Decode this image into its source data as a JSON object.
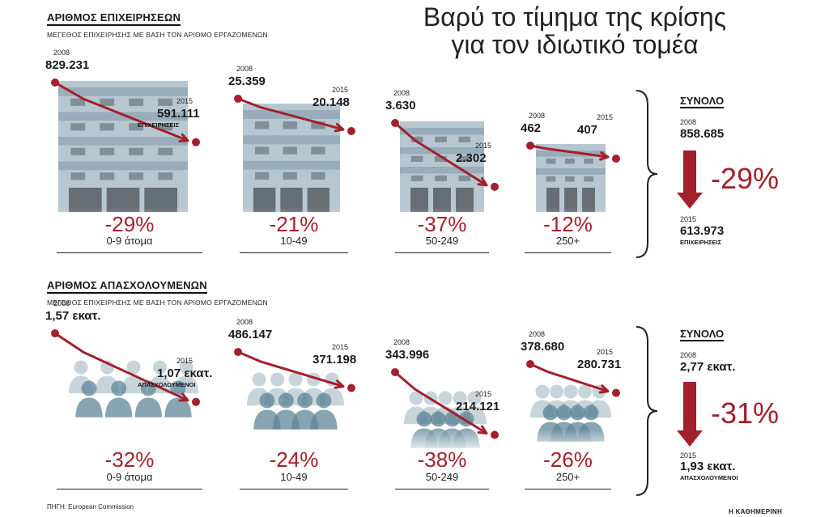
{
  "title_main": "Βαρύ το τίμημα της κρίσης για τον ιδιωτικό τομέα",
  "colors": {
    "accent": "#a3202c",
    "building": "#9fb4c1",
    "people": "#5f8698"
  },
  "source": "ΠΗΓΗ: European Commission",
  "credit": "Η ΚΑΘΗΜΕΡΙΝΗ",
  "chart_data": [
    {
      "type": "line",
      "section_title": "ΑΡΙΘΜΟΣ ΕΠΙΧΕΙΡΗΣΕΩΝ",
      "section_subtitle": "ΜΕΓΕΘΟΣ ΕΠΙΧΕΙΡΗΣΗΣ ΜΕ ΒΑΣΗ ΤΟΝ ΑΡΙΘΜΟ ΕΡΓΑΖΟΜΕΝΩΝ",
      "x": [
        "2008",
        "2015"
      ],
      "panels": [
        {
          "category": "0-9 άτομα",
          "start_year": "2008",
          "end_year": "2015",
          "start_label": "829.231",
          "end_label": "591.111",
          "end_unit": "ΕΠΙΧΕΙΡΗΣΕΙΣ",
          "values": [
            829231,
            591111
          ],
          "change": "-29%"
        },
        {
          "category": "10-49",
          "start_year": "2008",
          "end_year": "2015",
          "start_label": "25.359",
          "end_label": "20.148",
          "end_unit": "",
          "values": [
            25359,
            20148
          ],
          "change": "-21%"
        },
        {
          "category": "50-249",
          "start_year": "2008",
          "end_year": "2015",
          "start_label": "3.630",
          "end_label": "2.302",
          "end_unit": "",
          "values": [
            3630,
            2302
          ],
          "change": "-37%"
        },
        {
          "category": "250+",
          "start_year": "2008",
          "end_year": "2015",
          "start_label": "462",
          "end_label": "407",
          "end_unit": "",
          "values": [
            462,
            407
          ],
          "change": "-12%"
        }
      ],
      "total": {
        "title": "ΣΥΝΟΛΟ",
        "start_year": "2008",
        "start_label": "858.685",
        "end_year": "2015",
        "end_label": "613.973",
        "end_unit": "ΕΠΙΧΕΙΡΗΣΕΙΣ",
        "values": [
          858685,
          613973
        ],
        "change": "-29%"
      }
    },
    {
      "type": "line",
      "section_title": "ΑΡΙΘΜΟΣ ΑΠΑΣΧΟΛΟΥΜΕΝΩΝ",
      "section_subtitle": "ΜΕΓΕΘΟΣ ΕΠΙΧΕΙΡΗΣΗΣ ΜΕ ΒΑΣΗ ΤΟΝ ΑΡΙΘΜΟ ΕΡΓΑΖΟΜΕΝΩΝ",
      "x": [
        "2008",
        "2015"
      ],
      "panels": [
        {
          "category": "0-9 άτομα",
          "start_year": "2008",
          "end_year": "2015",
          "start_label": "1,57 εκατ.",
          "end_label": "1,07 εκατ.",
          "end_unit": "ΑΠΑΣΧΟΛΟΥΜΕΝΟΙ",
          "values": [
            1570000,
            1070000
          ],
          "change": "-32%"
        },
        {
          "category": "10-49",
          "start_year": "2008",
          "end_year": "2015",
          "start_label": "486.147",
          "end_label": "371.198",
          "end_unit": "",
          "values": [
            486147,
            371198
          ],
          "change": "-24%"
        },
        {
          "category": "50-249",
          "start_year": "2008",
          "end_year": "2015",
          "start_label": "343.996",
          "end_label": "214.121",
          "end_unit": "",
          "values": [
            343996,
            214121
          ],
          "change": "-38%"
        },
        {
          "category": "250+",
          "start_year": "2008",
          "end_year": "2015",
          "start_label": "378.680",
          "end_label": "280.731",
          "end_unit": "",
          "values": [
            378680,
            280731
          ],
          "change": "-26%"
        }
      ],
      "total": {
        "title": "ΣΥΝΟΛΟ",
        "start_year": "2008",
        "start_label": "2,77 εκατ.",
        "end_year": "2015",
        "end_label": "1,93 εκατ.",
        "end_unit": "ΑΠΑΣΧΟΛΟΥΜΕΝΟΙ",
        "values": [
          2770000,
          1930000
        ],
        "change": "-31%"
      }
    }
  ]
}
